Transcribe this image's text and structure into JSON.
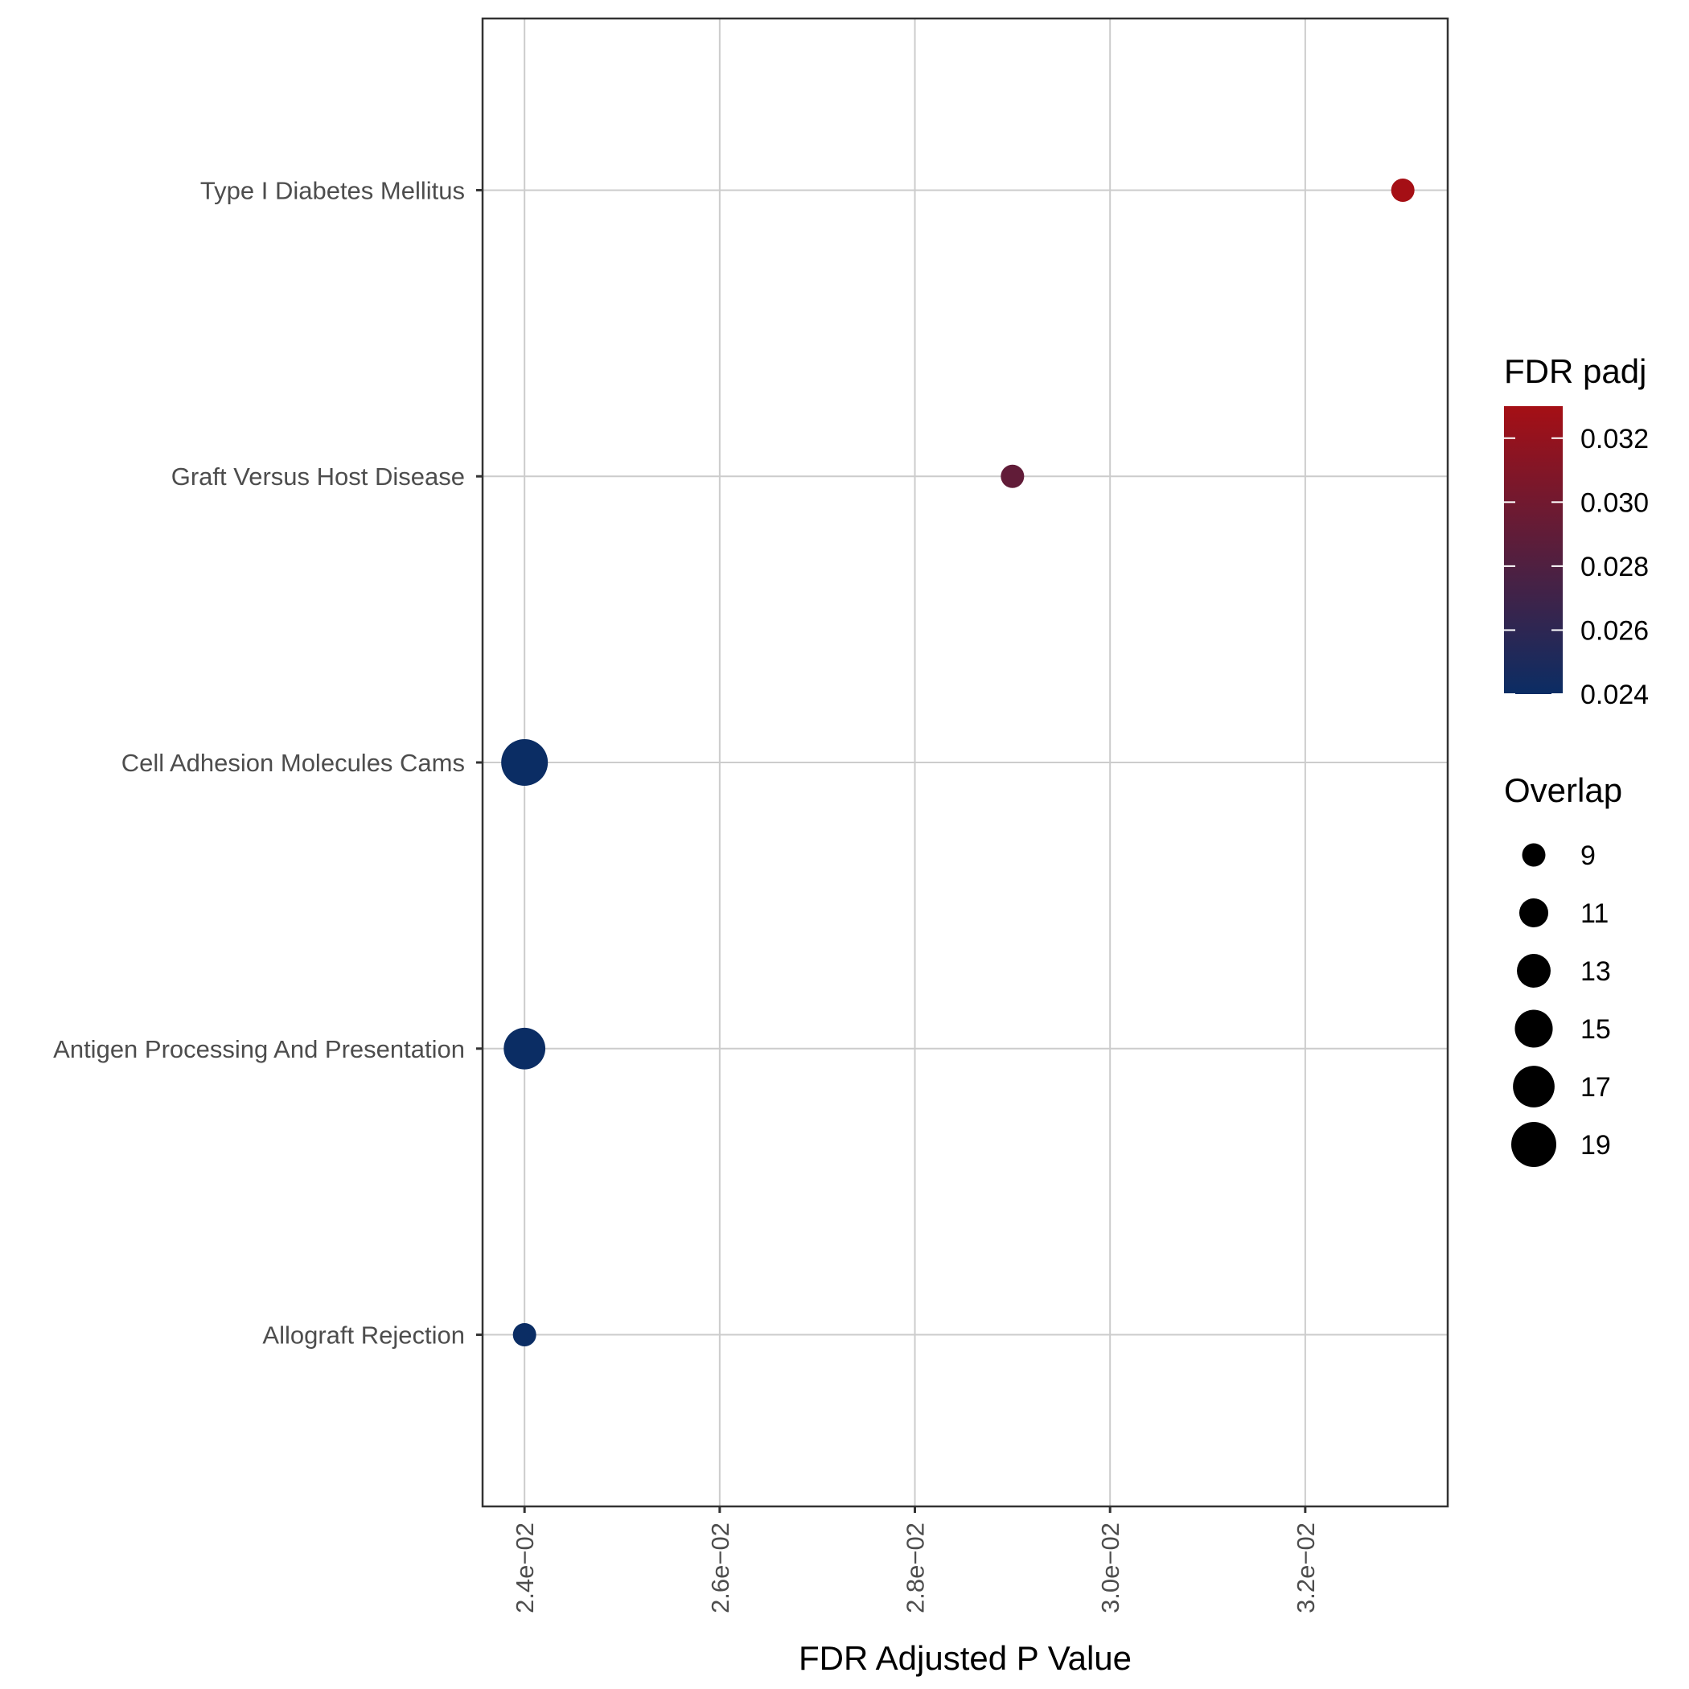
{
  "chart_data": {
    "type": "scatter",
    "xlabel": "FDR Adjusted P Value",
    "ylabel": "",
    "xlim": [
      0.02357,
      0.03346
    ],
    "x_ticks": [
      {
        "value": 0.024,
        "label": "2.4e−02"
      },
      {
        "value": 0.026,
        "label": "2.6e−02"
      },
      {
        "value": 0.028,
        "label": "2.8e−02"
      },
      {
        "value": 0.03,
        "label": "3.0e−02"
      },
      {
        "value": 0.032,
        "label": "3.2e−02"
      }
    ],
    "categories": [
      "Allograft Rejection",
      "Antigen Processing And Presentation",
      "Cell Adhesion Molecules Cams",
      "Graft Versus Host Disease",
      "Type I Diabetes Mellitus"
    ],
    "points": [
      {
        "category": "Allograft Rejection",
        "x": 0.024,
        "overlap": 9,
        "padj": 0.024
      },
      {
        "category": "Antigen Processing And Presentation",
        "x": 0.024,
        "overlap": 17,
        "padj": 0.024
      },
      {
        "category": "Cell Adhesion Molecules Cams",
        "x": 0.024,
        "overlap": 20,
        "padj": 0.024
      },
      {
        "category": "Graft Versus Host Disease",
        "x": 0.029,
        "overlap": 9,
        "padj": 0.029
      },
      {
        "category": "Type I Diabetes Mellitus",
        "x": 0.033,
        "overlap": 9,
        "padj": 0.033
      }
    ],
    "grid": true,
    "legend_position": "right",
    "color_legend": {
      "title": "FDR padj",
      "low_color": "#0b2d64",
      "high_color": "#a50f15",
      "range": [
        0.024,
        0.033
      ],
      "ticks": [
        {
          "value": 0.024,
          "label": "0.024"
        },
        {
          "value": 0.026,
          "label": "0.026"
        },
        {
          "value": 0.028,
          "label": "0.028"
        },
        {
          "value": 0.03,
          "label": "0.030"
        },
        {
          "value": 0.032,
          "label": "0.032"
        }
      ]
    },
    "size_legend": {
      "title": "Overlap",
      "color": "#000000",
      "entries": [
        {
          "value": 9,
          "label": "9"
        },
        {
          "value": 11,
          "label": "11"
        },
        {
          "value": 13,
          "label": "13"
        },
        {
          "value": 15,
          "label": "15"
        },
        {
          "value": 17,
          "label": "17"
        },
        {
          "value": 19,
          "label": "19"
        }
      ]
    }
  }
}
